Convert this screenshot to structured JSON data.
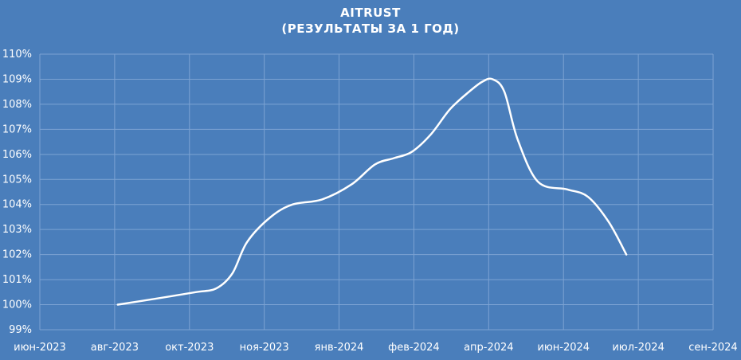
{
  "chart_data": {
    "type": "line",
    "title_line1": "AITRUST",
    "title_line2": "(РЕЗУЛЬТАТЫ ЗА 1 ГОД)",
    "xlabel": "",
    "ylabel": "",
    "x_ticks": [
      "июн-2023",
      "авг-2023",
      "окт-2023",
      "ноя-2023",
      "янв-2024",
      "фев-2024",
      "апр-2024",
      "июн-2024",
      "июл-2024",
      "сен-2024"
    ],
    "xlim": [
      "2023-06-01",
      "2024-09-01"
    ],
    "y_ticks": [
      "99%",
      "100%",
      "101%",
      "102%",
      "103%",
      "104%",
      "105%",
      "106%",
      "107%",
      "108%",
      "109%",
      "110%"
    ],
    "ylim": [
      99,
      110
    ],
    "grid": true,
    "legend": "none",
    "line_color": "#ffffff",
    "background": "#4a7ebb",
    "series": [
      {
        "x": [
          "2023-07-24",
          "2023-08-20",
          "2023-09-15",
          "2023-09-29",
          "2023-10-10",
          "2023-10-20",
          "2023-11-05",
          "2023-11-20",
          "2023-12-10",
          "2023-12-30",
          "2024-01-15",
          "2024-01-28",
          "2024-02-09",
          "2024-02-22",
          "2024-03-06",
          "2024-03-19",
          "2024-03-28",
          "2024-04-04",
          "2024-04-12",
          "2024-04-21",
          "2024-05-05",
          "2024-05-25",
          "2024-06-08",
          "2024-06-22",
          "2024-07-04"
        ],
        "values": [
          100.0,
          100.25,
          100.5,
          100.65,
          101.25,
          102.5,
          103.5,
          104.0,
          104.2,
          104.8,
          105.6,
          105.85,
          106.1,
          106.8,
          107.8,
          108.5,
          108.9,
          109.0,
          108.5,
          106.6,
          104.9,
          104.6,
          104.3,
          103.3,
          102.0
        ]
      }
    ]
  }
}
